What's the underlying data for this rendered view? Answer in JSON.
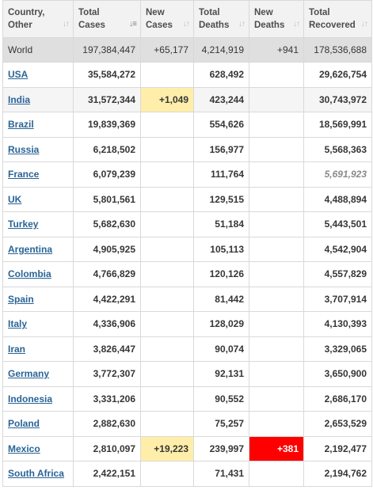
{
  "headers": [
    {
      "line1": "Country,",
      "line2": "Other"
    },
    {
      "line1": "Total",
      "line2": "Cases"
    },
    {
      "line1": "New",
      "line2": "Cases"
    },
    {
      "line1": "Total",
      "line2": "Deaths"
    },
    {
      "line1": "New",
      "line2": "Deaths"
    },
    {
      "line1": "Total",
      "line2": "Recovered"
    }
  ],
  "world": {
    "country": "World",
    "total_cases": "197,384,447",
    "new_cases": "+65,177",
    "total_deaths": "4,214,919",
    "new_deaths": "+941",
    "total_recovered": "178,536,688"
  },
  "rows": [
    {
      "country": "USA",
      "total_cases": "35,584,272",
      "new_cases": "",
      "total_deaths": "628,492",
      "new_deaths": "",
      "total_recovered": "29,626,754"
    },
    {
      "country": "India",
      "total_cases": "31,572,344",
      "new_cases": "+1,049",
      "total_deaths": "423,244",
      "new_deaths": "",
      "total_recovered": "30,743,972"
    },
    {
      "country": "Brazil",
      "total_cases": "19,839,369",
      "new_cases": "",
      "total_deaths": "554,626",
      "new_deaths": "",
      "total_recovered": "18,569,991"
    },
    {
      "country": "Russia",
      "total_cases": "6,218,502",
      "new_cases": "",
      "total_deaths": "156,977",
      "new_deaths": "",
      "total_recovered": "5,568,363"
    },
    {
      "country": "France",
      "total_cases": "6,079,239",
      "new_cases": "",
      "total_deaths": "111,764",
      "new_deaths": "",
      "total_recovered": "5,691,923"
    },
    {
      "country": "UK",
      "total_cases": "5,801,561",
      "new_cases": "",
      "total_deaths": "129,515",
      "new_deaths": "",
      "total_recovered": "4,488,894"
    },
    {
      "country": "Turkey",
      "total_cases": "5,682,630",
      "new_cases": "",
      "total_deaths": "51,184",
      "new_deaths": "",
      "total_recovered": "5,443,501"
    },
    {
      "country": "Argentina",
      "total_cases": "4,905,925",
      "new_cases": "",
      "total_deaths": "105,113",
      "new_deaths": "",
      "total_recovered": "4,542,904"
    },
    {
      "country": "Colombia",
      "total_cases": "4,766,829",
      "new_cases": "",
      "total_deaths": "120,126",
      "new_deaths": "",
      "total_recovered": "4,557,829"
    },
    {
      "country": "Spain",
      "total_cases": "4,422,291",
      "new_cases": "",
      "total_deaths": "81,442",
      "new_deaths": "",
      "total_recovered": "3,707,914"
    },
    {
      "country": "Italy",
      "total_cases": "4,336,906",
      "new_cases": "",
      "total_deaths": "128,029",
      "new_deaths": "",
      "total_recovered": "4,130,393"
    },
    {
      "country": "Iran",
      "total_cases": "3,826,447",
      "new_cases": "",
      "total_deaths": "90,074",
      "new_deaths": "",
      "total_recovered": "3,329,065"
    },
    {
      "country": "Germany",
      "total_cases": "3,772,307",
      "new_cases": "",
      "total_deaths": "92,131",
      "new_deaths": "",
      "total_recovered": "3,650,900"
    },
    {
      "country": "Indonesia",
      "total_cases": "3,331,206",
      "new_cases": "",
      "total_deaths": "90,552",
      "new_deaths": "",
      "total_recovered": "2,686,170"
    },
    {
      "country": "Poland",
      "total_cases": "2,882,630",
      "new_cases": "",
      "total_deaths": "75,257",
      "new_deaths": "",
      "total_recovered": "2,653,529"
    },
    {
      "country": "Mexico",
      "total_cases": "2,810,097",
      "new_cases": "+19,223",
      "total_deaths": "239,997",
      "new_deaths": "+381",
      "total_recovered": "2,192,477"
    },
    {
      "country": "South Africa",
      "total_cases": "2,422,151",
      "new_cases": "",
      "total_deaths": "71,431",
      "new_deaths": "",
      "total_recovered": "2,194,762"
    }
  ],
  "colors": {
    "link": "#2a6496",
    "new_cases_bg": "#ffeeaa",
    "new_deaths_bg": "#ff0000",
    "header_bg": "#f2f2f2",
    "world_bg": "#dfdfdf"
  },
  "icons": {
    "sort": "sort-arrows-icon",
    "sort_active": "sort-desc-icon"
  }
}
